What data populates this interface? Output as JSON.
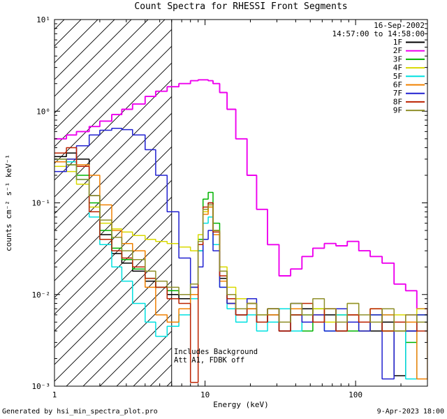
{
  "title": "Count Spectra for RHESSI Front Segments",
  "header": {
    "date": "16-Sep-2002",
    "time_range": "14:57:00 to 14:58:00"
  },
  "annotations": [
    "Includes Background",
    "Att A1, FDBK off"
  ],
  "footer": {
    "left": "Generated by hsi_min_spectra_plot.pro",
    "right": "9-Apr-2023 18:00"
  },
  "axes": {
    "xlabel": "Energy (keV)",
    "ylabel": "counts cm⁻² s⁻¹ keV⁻¹",
    "x_ticks": [
      {
        "v": 1,
        "label": "1"
      },
      {
        "v": 10,
        "label": "10"
      },
      {
        "v": 100,
        "label": "100"
      }
    ],
    "y_ticks": [
      {
        "v": 0.001,
        "label": "10⁻³"
      },
      {
        "v": 0.01,
        "label": "10⁻²"
      },
      {
        "v": 0.1,
        "label": "10⁻¹"
      },
      {
        "v": 1,
        "label": "10⁰"
      },
      {
        "v": 10,
        "label": "10¹"
      }
    ]
  },
  "chart_data": {
    "type": "line",
    "title": "Count Spectra for RHESSI Front Segments",
    "xlabel": "Energy (keV)",
    "ylabel": "counts cm-2 s-1 keV-1",
    "x_scale": "log",
    "y_scale": "log",
    "xlim": [
      1,
      300
    ],
    "ylim": [
      0.001,
      10
    ],
    "hatch_region": {
      "x_from": 1,
      "x_to": 6
    },
    "vline_x": 6,
    "x": [
      1.0,
      1.2,
      1.4,
      1.7,
      2.0,
      2.4,
      2.8,
      3.3,
      4.0,
      4.7,
      5.6,
      6.7,
      8.0,
      9.0,
      9.7,
      10.5,
      11.3,
      12.5,
      14,
      16,
      19,
      22,
      26,
      31,
      37,
      44,
      52,
      62,
      74,
      88,
      105,
      125,
      150,
      180,
      215,
      255,
      300
    ],
    "series": [
      {
        "name": "1F",
        "color": "#000000",
        "values": [
          0.32,
          0.35,
          0.3,
          0.12,
          0.045,
          0.028,
          0.022,
          0.018,
          0.014,
          0.012,
          0.01,
          0.009,
          0.012,
          0.03,
          0.08,
          0.1,
          0.05,
          0.015,
          0.008,
          0.006,
          0.007,
          0.005,
          0.006,
          0.004,
          0.006,
          0.007,
          0.005,
          0.006,
          0.004,
          0.006,
          0.005,
          0.004,
          0.005,
          0.0013,
          0.004,
          0.005,
          0.003
        ]
      },
      {
        "name": "2F",
        "color": "#ee00ee",
        "values": [
          0.5,
          0.55,
          0.6,
          0.68,
          0.78,
          0.92,
          1.05,
          1.2,
          1.45,
          1.65,
          1.85,
          2.0,
          2.15,
          2.2,
          2.2,
          2.15,
          2.0,
          1.6,
          1.05,
          0.5,
          0.2,
          0.085,
          0.035,
          0.016,
          0.019,
          0.026,
          0.032,
          0.036,
          0.034,
          0.038,
          0.03,
          0.026,
          0.022,
          0.013,
          0.011,
          0.007,
          0.006
        ]
      },
      {
        "name": "3F",
        "color": "#00b300",
        "values": [
          0.28,
          0.26,
          0.2,
          0.1,
          0.05,
          0.032,
          0.024,
          0.019,
          0.015,
          0.012,
          0.011,
          0.01,
          0.013,
          0.04,
          0.11,
          0.13,
          0.06,
          0.018,
          0.009,
          0.006,
          0.008,
          0.005,
          0.007,
          0.005,
          0.006,
          0.004,
          0.007,
          0.005,
          0.006,
          0.004,
          0.005,
          0.006,
          0.004,
          0.005,
          0.003,
          0.006,
          0.004
        ]
      },
      {
        "name": "4F",
        "color": "#d9d900",
        "values": [
          0.25,
          0.22,
          0.16,
          0.09,
          0.06,
          0.052,
          0.048,
          0.044,
          0.04,
          0.038,
          0.036,
          0.033,
          0.03,
          0.045,
          0.08,
          0.09,
          0.05,
          0.02,
          0.012,
          0.009,
          0.008,
          0.006,
          0.007,
          0.005,
          0.008,
          0.006,
          0.007,
          0.005,
          0.006,
          0.008,
          0.005,
          0.007,
          0.004,
          0.006,
          0.005,
          0.007,
          0.005
        ]
      },
      {
        "name": "5F",
        "color": "#00e0e0",
        "values": [
          0.3,
          0.28,
          0.18,
          0.07,
          0.035,
          0.02,
          0.014,
          0.008,
          0.005,
          0.0035,
          0.0045,
          0.006,
          0.009,
          0.03,
          0.06,
          0.07,
          0.035,
          0.012,
          0.007,
          0.005,
          0.006,
          0.004,
          0.005,
          0.007,
          0.004,
          0.006,
          0.005,
          0.004,
          0.006,
          0.005,
          0.004,
          0.005,
          0.006,
          0.004,
          0.0012,
          0.005,
          0.004
        ]
      },
      {
        "name": "6F",
        "color": "#f08000",
        "values": [
          0.28,
          0.3,
          0.26,
          0.2,
          0.095,
          0.05,
          0.036,
          0.03,
          0.012,
          0.006,
          0.005,
          0.007,
          0.01,
          0.035,
          0.075,
          0.09,
          0.045,
          0.014,
          0.008,
          0.006,
          0.007,
          0.005,
          0.006,
          0.004,
          0.007,
          0.005,
          0.006,
          0.007,
          0.005,
          0.006,
          0.004,
          0.005,
          0.006,
          0.004,
          0.005,
          0.0012,
          0.005
        ]
      },
      {
        "name": "7F",
        "color": "#2020d0",
        "values": [
          0.22,
          0.3,
          0.42,
          0.55,
          0.62,
          0.65,
          0.63,
          0.55,
          0.38,
          0.2,
          0.08,
          0.025,
          0.012,
          0.02,
          0.04,
          0.05,
          0.03,
          0.012,
          0.008,
          0.006,
          0.009,
          0.005,
          0.007,
          0.004,
          0.008,
          0.005,
          0.006,
          0.004,
          0.007,
          0.005,
          0.004,
          0.006,
          0.0012,
          0.005,
          0.004,
          0.006,
          0.004
        ]
      },
      {
        "name": "8F",
        "color": "#bb2200",
        "values": [
          0.35,
          0.4,
          0.25,
          0.08,
          0.04,
          0.03,
          0.025,
          0.02,
          0.015,
          0.012,
          0.009,
          0.008,
          0.0011,
          0.035,
          0.09,
          0.1,
          0.048,
          0.016,
          0.009,
          0.006,
          0.008,
          0.005,
          0.007,
          0.004,
          0.006,
          0.008,
          0.005,
          0.007,
          0.004,
          0.006,
          0.005,
          0.007,
          0.004,
          0.005,
          0.006,
          0.004,
          0.005
        ]
      },
      {
        "name": "9F",
        "color": "#8f8f2a",
        "values": [
          0.3,
          0.26,
          0.18,
          0.12,
          0.065,
          0.042,
          0.03,
          0.024,
          0.018,
          0.014,
          0.012,
          0.01,
          0.013,
          0.038,
          0.085,
          0.095,
          0.05,
          0.018,
          0.01,
          0.007,
          0.008,
          0.006,
          0.007,
          0.005,
          0.008,
          0.006,
          0.009,
          0.007,
          0.005,
          0.008,
          0.006,
          0.005,
          0.007,
          0.004,
          0.006,
          0.005,
          0.004
        ]
      }
    ]
  }
}
